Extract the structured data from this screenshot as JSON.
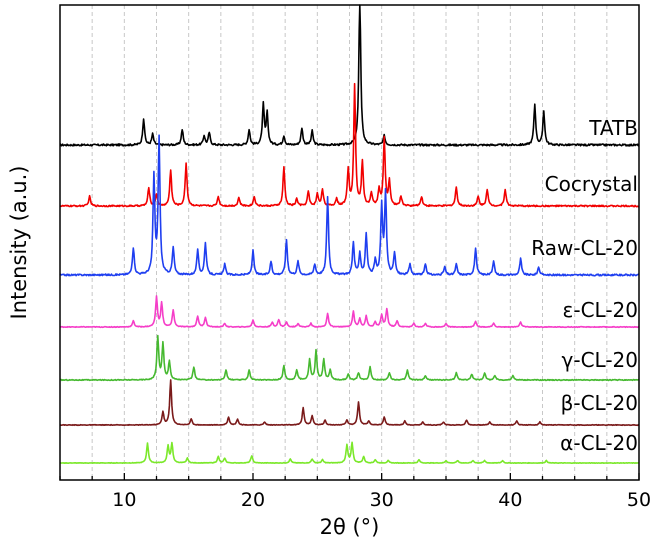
{
  "chart_data": {
    "type": "line",
    "title": "",
    "xlabel": "2θ (°)",
    "ylabel": "Intensity (a.u.)",
    "xlim": [
      5,
      50
    ],
    "xticks": [
      10,
      20,
      30,
      40,
      50
    ],
    "xtick_labels": [
      "10",
      "20",
      "30",
      "40",
      "50"
    ],
    "grid": "vertical-dashed",
    "legend": "inline labels at right end of each trace",
    "series": [
      {
        "name": "TATB",
        "color": "#000000",
        "peaks": [
          [
            11.5,
            0.17
          ],
          [
            12.2,
            0.07
          ],
          [
            14.5,
            0.1
          ],
          [
            16.2,
            0.06
          ],
          [
            16.6,
            0.08
          ],
          [
            19.7,
            0.1
          ],
          [
            20.8,
            0.26
          ],
          [
            21.1,
            0.2
          ],
          [
            22.4,
            0.06
          ],
          [
            23.8,
            0.11
          ],
          [
            24.6,
            0.09
          ],
          [
            28.3,
            1.0
          ],
          [
            30.2,
            0.06
          ],
          [
            41.9,
            0.26
          ],
          [
            42.6,
            0.22
          ]
        ]
      },
      {
        "name": "Cocrystal",
        "color": "#f20000",
        "peaks": [
          [
            7.3,
            0.08
          ],
          [
            11.9,
            0.15
          ],
          [
            12.5,
            0.1
          ],
          [
            13.6,
            0.3
          ],
          [
            14.8,
            0.36
          ],
          [
            17.3,
            0.08
          ],
          [
            18.9,
            0.07
          ],
          [
            20.1,
            0.08
          ],
          [
            22.4,
            0.32
          ],
          [
            23.4,
            0.06
          ],
          [
            24.3,
            0.12
          ],
          [
            25.0,
            0.1
          ],
          [
            25.4,
            0.14
          ],
          [
            26.5,
            0.06
          ],
          [
            27.4,
            0.3
          ],
          [
            27.9,
            1.0
          ],
          [
            28.5,
            0.36
          ],
          [
            29.2,
            0.1
          ],
          [
            29.8,
            0.14
          ],
          [
            30.2,
            0.56
          ],
          [
            30.6,
            0.2
          ],
          [
            31.5,
            0.08
          ],
          [
            33.1,
            0.08
          ],
          [
            35.8,
            0.16
          ],
          [
            37.5,
            0.08
          ],
          [
            38.2,
            0.14
          ],
          [
            39.6,
            0.14
          ]
        ]
      },
      {
        "name": "Raw-CL-20",
        "color": "#1f3ff0",
        "peaks": [
          [
            10.7,
            0.2
          ],
          [
            12.3,
            0.72
          ],
          [
            12.7,
            1.0
          ],
          [
            13.8,
            0.2
          ],
          [
            15.7,
            0.18
          ],
          [
            16.3,
            0.24
          ],
          [
            17.8,
            0.08
          ],
          [
            20.0,
            0.18
          ],
          [
            21.4,
            0.1
          ],
          [
            22.6,
            0.26
          ],
          [
            23.5,
            0.1
          ],
          [
            24.8,
            0.08
          ],
          [
            25.8,
            0.58
          ],
          [
            27.8,
            0.24
          ],
          [
            28.3,
            0.16
          ],
          [
            28.8,
            0.3
          ],
          [
            29.5,
            0.1
          ],
          [
            30.0,
            0.5
          ],
          [
            30.3,
            0.6
          ],
          [
            31.0,
            0.16
          ],
          [
            32.2,
            0.08
          ],
          [
            33.4,
            0.08
          ],
          [
            34.9,
            0.06
          ],
          [
            35.8,
            0.08
          ],
          [
            37.3,
            0.2
          ],
          [
            38.7,
            0.1
          ],
          [
            40.8,
            0.12
          ],
          [
            42.2,
            0.06
          ]
        ]
      },
      {
        "name": "ε-CL-20",
        "color": "#f53ec8",
        "peaks": [
          [
            10.7,
            0.1
          ],
          [
            12.5,
            0.5
          ],
          [
            12.9,
            0.4
          ],
          [
            13.8,
            0.28
          ],
          [
            15.7,
            0.18
          ],
          [
            16.3,
            0.16
          ],
          [
            17.8,
            0.06
          ],
          [
            20.0,
            0.12
          ],
          [
            21.5,
            0.08
          ],
          [
            22.0,
            0.12
          ],
          [
            22.6,
            0.08
          ],
          [
            23.5,
            0.06
          ],
          [
            24.5,
            0.06
          ],
          [
            25.8,
            0.22
          ],
          [
            27.8,
            0.26
          ],
          [
            28.3,
            0.14
          ],
          [
            28.8,
            0.18
          ],
          [
            29.5,
            0.08
          ],
          [
            30.0,
            0.2
          ],
          [
            30.4,
            0.3
          ],
          [
            31.2,
            0.1
          ],
          [
            32.5,
            0.06
          ],
          [
            33.4,
            0.06
          ],
          [
            35.0,
            0.06
          ],
          [
            37.3,
            0.1
          ],
          [
            38.7,
            0.06
          ],
          [
            40.8,
            0.08
          ]
        ]
      },
      {
        "name": "γ-CL-20",
        "color": "#46b930",
        "peaks": [
          [
            12.6,
            0.6
          ],
          [
            13.0,
            0.5
          ],
          [
            13.5,
            0.26
          ],
          [
            15.4,
            0.18
          ],
          [
            17.9,
            0.14
          ],
          [
            19.7,
            0.14
          ],
          [
            22.4,
            0.2
          ],
          [
            23.4,
            0.14
          ],
          [
            24.4,
            0.28
          ],
          [
            24.9,
            0.4
          ],
          [
            25.5,
            0.28
          ],
          [
            26.0,
            0.14
          ],
          [
            27.4,
            0.08
          ],
          [
            28.2,
            0.1
          ],
          [
            29.1,
            0.18
          ],
          [
            30.6,
            0.1
          ],
          [
            32.0,
            0.14
          ],
          [
            33.4,
            0.06
          ],
          [
            35.8,
            0.1
          ],
          [
            37.0,
            0.08
          ],
          [
            38.0,
            0.1
          ],
          [
            38.8,
            0.06
          ],
          [
            40.2,
            0.06
          ]
        ]
      },
      {
        "name": "β-CL-20",
        "color": "#7a1a1a",
        "peaks": [
          [
            13.0,
            0.26
          ],
          [
            13.6,
            0.9
          ],
          [
            15.2,
            0.12
          ],
          [
            18.1,
            0.16
          ],
          [
            18.8,
            0.12
          ],
          [
            20.9,
            0.06
          ],
          [
            23.9,
            0.34
          ],
          [
            24.6,
            0.18
          ],
          [
            25.6,
            0.1
          ],
          [
            27.3,
            0.1
          ],
          [
            28.2,
            0.46
          ],
          [
            29.0,
            0.08
          ],
          [
            30.2,
            0.16
          ],
          [
            31.8,
            0.08
          ],
          [
            33.2,
            0.06
          ],
          [
            34.8,
            0.06
          ],
          [
            36.6,
            0.1
          ],
          [
            38.4,
            0.06
          ],
          [
            40.5,
            0.08
          ],
          [
            42.3,
            0.06
          ]
        ]
      },
      {
        "name": "α-CL-20",
        "color": "#7be82a",
        "peaks": [
          [
            11.8,
            0.5
          ],
          [
            13.4,
            0.42
          ],
          [
            13.7,
            0.48
          ],
          [
            14.9,
            0.12
          ],
          [
            17.3,
            0.16
          ],
          [
            17.8,
            0.12
          ],
          [
            19.9,
            0.18
          ],
          [
            22.9,
            0.1
          ],
          [
            24.6,
            0.1
          ],
          [
            25.4,
            0.08
          ],
          [
            27.3,
            0.44
          ],
          [
            27.7,
            0.5
          ],
          [
            28.6,
            0.16
          ],
          [
            29.5,
            0.08
          ],
          [
            30.5,
            0.06
          ],
          [
            32.9,
            0.08
          ],
          [
            35.0,
            0.06
          ],
          [
            35.9,
            0.06
          ],
          [
            37.1,
            0.06
          ],
          [
            38.0,
            0.06
          ],
          [
            39.4,
            0.06
          ],
          [
            42.8,
            0.06
          ]
        ]
      }
    ]
  }
}
